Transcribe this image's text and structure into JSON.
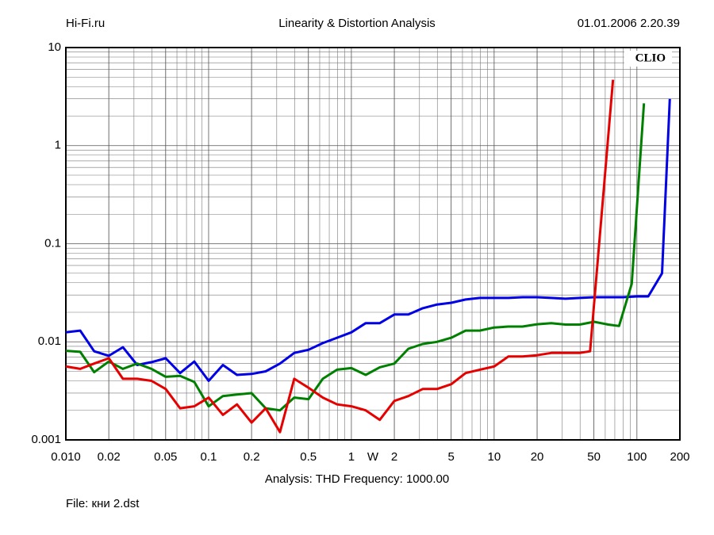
{
  "chart_data": {
    "type": "line",
    "header_left": "Hi-Fi.ru",
    "title": "Linearity & Distortion Analysis",
    "header_right": "01.01.2006 2.20.39",
    "brand": "CLIO",
    "xlabel": "W",
    "subtitle": "Analysis: THD   Frequency: 1000.00",
    "footer": "File: кни 2.dst",
    "xlog": true,
    "ylog": true,
    "grid": true,
    "minor_grid": true,
    "xlim": [
      0.01,
      200
    ],
    "ylim": [
      0.001,
      10
    ],
    "xticks": [
      {
        "value": 0.01,
        "label": "0.010"
      },
      0.02,
      0.05,
      0.1,
      0.2,
      0.5,
      1,
      2,
      5,
      10,
      20,
      50,
      100,
      200
    ],
    "yticks": [
      0.001,
      0.01,
      0.1,
      1,
      10
    ],
    "series": [
      {
        "color": "#0000e6",
        "x": [
          0.01,
          0.0126,
          0.0158,
          0.02,
          0.0251,
          0.0316,
          0.0398,
          0.0501,
          0.0631,
          0.0794,
          0.1,
          0.126,
          0.158,
          0.2,
          0.251,
          0.316,
          0.398,
          0.501,
          0.631,
          0.794,
          1,
          1.26,
          1.58,
          2,
          2.51,
          3.16,
          3.98,
          5.01,
          6.31,
          7.94,
          10,
          12.6,
          15.8,
          20,
          25.1,
          31.6,
          39.8,
          50.1,
          63.1,
          79.4,
          100,
          120,
          150,
          170
        ],
        "values": [
          0.0125,
          0.013,
          0.008,
          0.0072,
          0.0088,
          0.0058,
          0.0062,
          0.0068,
          0.0048,
          0.0063,
          0.004,
          0.0058,
          0.0046,
          0.0047,
          0.005,
          0.006,
          0.0077,
          0.0083,
          0.0097,
          0.011,
          0.0125,
          0.0155,
          0.0155,
          0.019,
          0.019,
          0.022,
          0.024,
          0.025,
          0.027,
          0.028,
          0.028,
          0.028,
          0.0285,
          0.0285,
          0.028,
          0.0275,
          0.028,
          0.0285,
          0.0285,
          0.0285,
          0.029,
          0.029,
          0.05,
          3.0
        ]
      },
      {
        "color": "#008000",
        "x": [
          0.01,
          0.0126,
          0.0158,
          0.02,
          0.0251,
          0.0316,
          0.0398,
          0.0501,
          0.0631,
          0.0794,
          0.1,
          0.126,
          0.158,
          0.2,
          0.251,
          0.316,
          0.398,
          0.501,
          0.631,
          0.794,
          1,
          1.26,
          1.58,
          2,
          2.51,
          3.16,
          3.98,
          5.01,
          6.31,
          7.94,
          10,
          12.6,
          15.8,
          20,
          25.1,
          31.6,
          39.8,
          50.1,
          63.1,
          75,
          92,
          112
        ],
        "values": [
          0.0081,
          0.0079,
          0.0049,
          0.0063,
          0.0053,
          0.006,
          0.0053,
          0.0044,
          0.0045,
          0.0039,
          0.0022,
          0.0028,
          0.0029,
          0.003,
          0.0021,
          0.002,
          0.0027,
          0.0026,
          0.0042,
          0.0052,
          0.0054,
          0.0046,
          0.0055,
          0.006,
          0.0085,
          0.0095,
          0.01,
          0.011,
          0.013,
          0.013,
          0.014,
          0.0143,
          0.0143,
          0.0151,
          0.0155,
          0.015,
          0.015,
          0.016,
          0.015,
          0.0145,
          0.039,
          2.7
        ]
      },
      {
        "color": "#e60000",
        "x": [
          0.01,
          0.0126,
          0.0158,
          0.02,
          0.0251,
          0.0316,
          0.0398,
          0.0501,
          0.0631,
          0.0794,
          0.1,
          0.126,
          0.158,
          0.2,
          0.251,
          0.316,
          0.398,
          0.501,
          0.631,
          0.794,
          1,
          1.26,
          1.58,
          2,
          2.51,
          3.16,
          3.98,
          5.01,
          6.31,
          7.94,
          10,
          12.6,
          15.8,
          20,
          25.1,
          31.6,
          39.8,
          47,
          68
        ],
        "values": [
          0.0056,
          0.0053,
          0.006,
          0.0068,
          0.0042,
          0.0042,
          0.004,
          0.0033,
          0.0021,
          0.0022,
          0.0027,
          0.0018,
          0.0023,
          0.0015,
          0.0021,
          0.0012,
          0.0042,
          0.0034,
          0.0027,
          0.0023,
          0.0022,
          0.002,
          0.0016,
          0.0025,
          0.0028,
          0.0033,
          0.0033,
          0.0037,
          0.0048,
          0.0052,
          0.0056,
          0.0071,
          0.0071,
          0.0073,
          0.0077,
          0.0077,
          0.0077,
          0.008,
          4.7
        ]
      }
    ]
  }
}
